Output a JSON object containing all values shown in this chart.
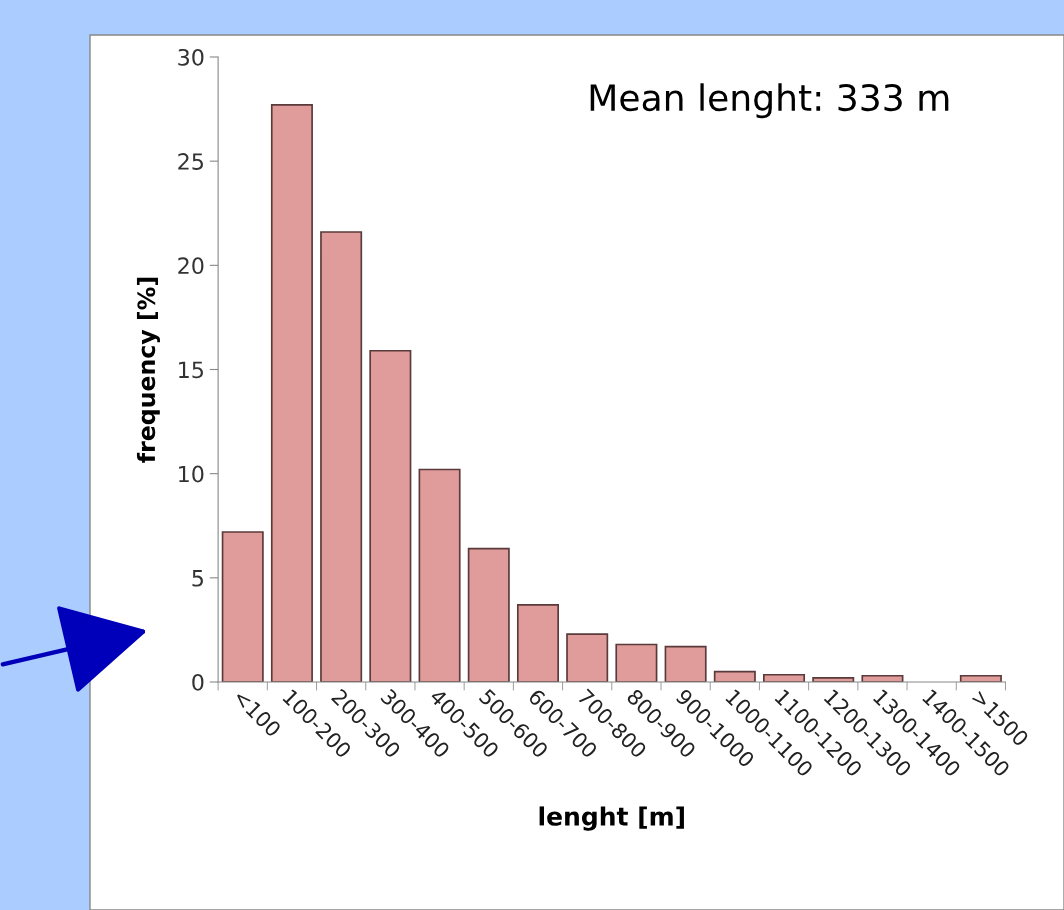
{
  "chart_data": {
    "type": "bar",
    "xlabel": "lenght [m]",
    "ylabel": "frequency [%]",
    "categories": [
      "<100",
      "100-200",
      "200-300",
      "300-400",
      "400-500",
      "500-600",
      "600-700",
      "700-800",
      "800-900",
      "900-1000",
      "1000-1100",
      "1100-1200",
      "1200-1300",
      "1300-1400",
      "1400-1500",
      ">1500"
    ],
    "values": [
      7.2,
      27.7,
      21.6,
      15.9,
      10.2,
      6.4,
      3.7,
      2.3,
      1.8,
      1.7,
      0.5,
      0.35,
      0.2,
      0.3,
      0,
      0.3
    ],
    "color": "#e09b9b",
    "ylim": [
      0,
      30
    ],
    "yticks": [
      0,
      5,
      10,
      15,
      20,
      25,
      30
    ],
    "annotations": [
      "Mean lenght: 333 m"
    ],
    "grid": false
  }
}
